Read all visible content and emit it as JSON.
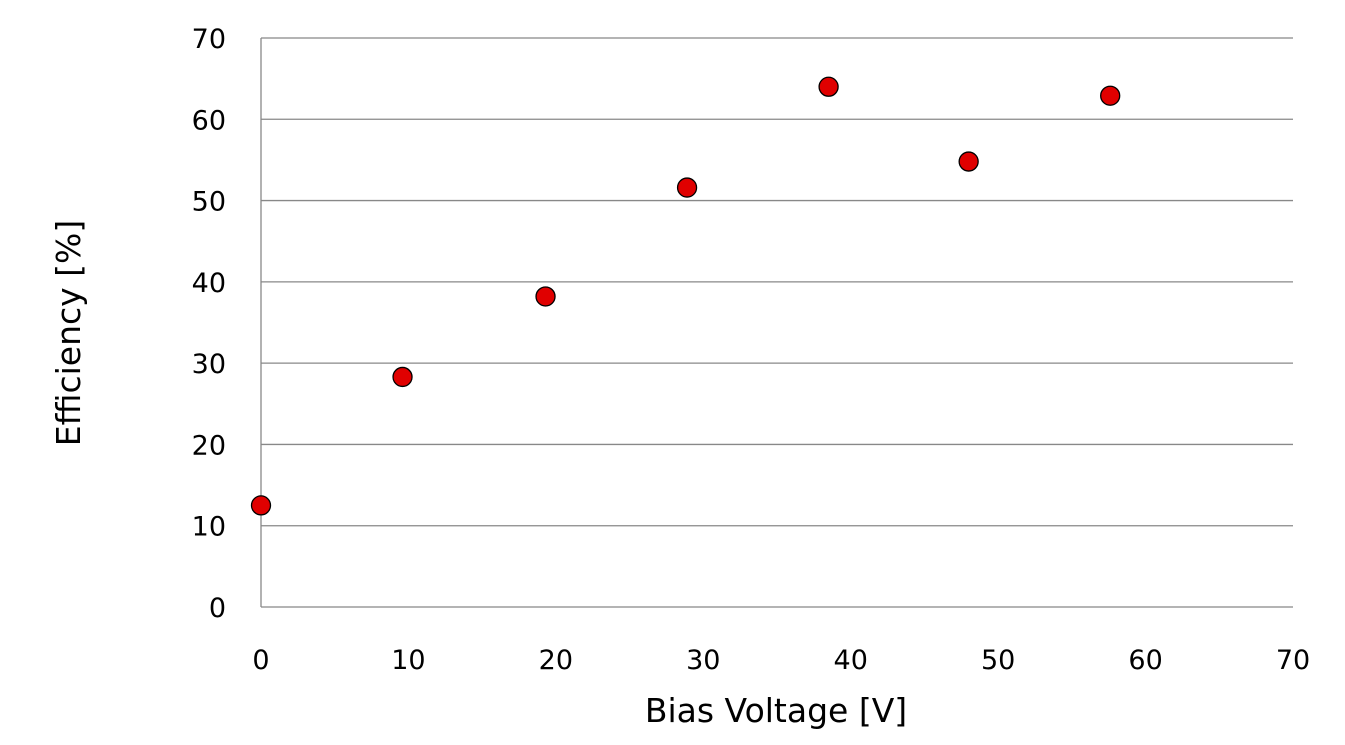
{
  "chart_data": {
    "type": "scatter",
    "title": "",
    "xlabel": "Bias Voltage [V]",
    "ylabel": "Efficiency [%]",
    "xlim": [
      0,
      70
    ],
    "ylim": [
      0,
      70
    ],
    "x_ticks": [
      0,
      10,
      20,
      30,
      40,
      50,
      60,
      70
    ],
    "y_ticks": [
      0,
      10,
      20,
      30,
      40,
      50,
      60,
      70
    ],
    "grid": "horizontal",
    "legend": "none",
    "series": [
      {
        "color": "#e00000",
        "points": [
          {
            "x": 0,
            "y": 12.5
          },
          {
            "x": 9.6,
            "y": 28.3
          },
          {
            "x": 19.3,
            "y": 38.2
          },
          {
            "x": 28.9,
            "y": 51.6
          },
          {
            "x": 38.5,
            "y": 64.0
          },
          {
            "x": 48.0,
            "y": 54.8
          },
          {
            "x": 57.6,
            "y": 62.9
          }
        ]
      }
    ]
  },
  "colors": {
    "marker_fill": "#e00000",
    "marker_stroke": "#000000",
    "gridline": "#888888",
    "axis": "#888888"
  }
}
